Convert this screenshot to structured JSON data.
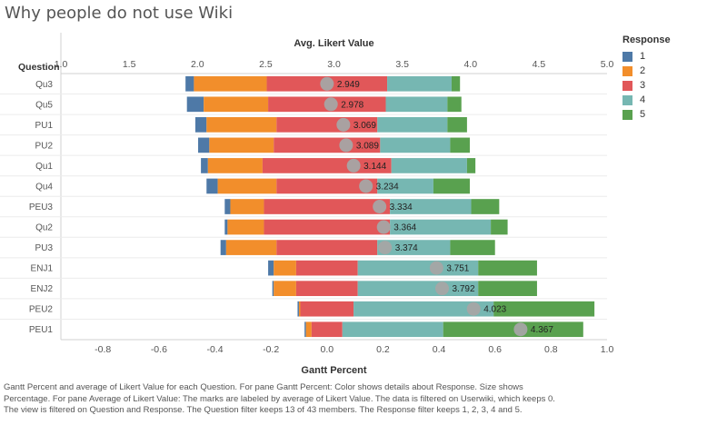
{
  "title": "Why people do not use Wiki",
  "chart_data": {
    "type": "bar",
    "row_header": "Question",
    "top_axis": {
      "label": "Avg. Likert Value",
      "range": [
        1.0,
        5.0
      ],
      "ticks": [
        "1.0",
        "1.5",
        "2.0",
        "2.5",
        "3.0",
        "3.5",
        "4.0",
        "4.5",
        "5.0"
      ]
    },
    "bottom_axis": {
      "label": "Gantt Percent",
      "range": [
        -0.95,
        1.0
      ],
      "ticks": [
        "-0.8",
        "-0.6",
        "-0.4",
        "-0.2",
        "0.0",
        "0.2",
        "0.4",
        "0.6",
        "0.8",
        "1.0"
      ]
    },
    "legend": {
      "title": "Response",
      "position": "right"
    },
    "responses": [
      {
        "name": "1",
        "color": "#4e79a7"
      },
      {
        "name": "2",
        "color": "#f28e2b"
      },
      {
        "name": "3",
        "color": "#e15759"
      },
      {
        "name": "4",
        "color": "#76b7b2"
      },
      {
        "name": "5",
        "color": "#59a14f"
      }
    ],
    "rows": [
      {
        "question": "Qu3",
        "segments": [
          0.03,
          0.26,
          0.43,
          0.23,
          0.03
        ],
        "avg": 2.949,
        "avg_label": "2.949"
      },
      {
        "question": "Qu5",
        "segments": [
          0.06,
          0.23,
          0.42,
          0.22,
          0.05
        ],
        "avg": 2.978,
        "avg_label": "2.978"
      },
      {
        "question": "PU1",
        "segments": [
          0.04,
          0.25,
          0.36,
          0.25,
          0.07
        ],
        "avg": 3.069,
        "avg_label": "3.069"
      },
      {
        "question": "PU2",
        "segments": [
          0.04,
          0.23,
          0.38,
          0.25,
          0.07
        ],
        "avg": 3.089,
        "avg_label": "3.089"
      },
      {
        "question": "Qu1",
        "segments": [
          0.025,
          0.195,
          0.46,
          0.27,
          0.03
        ],
        "avg": 3.144,
        "avg_label": "3.144"
      },
      {
        "question": "Qu4",
        "segments": [
          0.04,
          0.21,
          0.36,
          0.2,
          0.13
        ],
        "avg": 3.234,
        "avg_label": "3.234"
      },
      {
        "question": "PEU3",
        "segments": [
          0.02,
          0.12,
          0.45,
          0.29,
          0.1
        ],
        "avg": 3.334,
        "avg_label": "3.334"
      },
      {
        "question": "Qu2",
        "segments": [
          0.01,
          0.13,
          0.45,
          0.36,
          0.06
        ],
        "avg": 3.364,
        "avg_label": "3.364"
      },
      {
        "question": "PU3",
        "segments": [
          0.02,
          0.18,
          0.36,
          0.26,
          0.16
        ],
        "avg": 3.374,
        "avg_label": "3.374"
      },
      {
        "question": "ENJ1",
        "segments": [
          0.02,
          0.08,
          0.22,
          0.43,
          0.21
        ],
        "avg": 3.751,
        "avg_label": "3.751"
      },
      {
        "question": "ENJ2",
        "segments": [
          0.005,
          0.08,
          0.22,
          0.43,
          0.21
        ],
        "avg": 3.792,
        "avg_label": "3.792"
      },
      {
        "question": "PEU2",
        "segments": [
          0.005,
          0.005,
          0.19,
          0.5,
          0.36
        ],
        "avg": 4.023,
        "avg_label": "4.023"
      },
      {
        "question": "PEU1",
        "segments": [
          0.005,
          0.02,
          0.11,
          0.36,
          0.5
        ],
        "avg": 4.367,
        "avg_label": "4.367"
      }
    ],
    "grid": false
  },
  "caption": [
    "Gantt Percent and average of Likert Value for each Question.  For pane Gantt Percent:  Color shows details about Response.  Size shows",
    "Percentage.  For pane Average of Likert Value:  The marks are labeled by average of Likert Value. The data is filtered on Userwiki, which keeps 0.",
    "The view is filtered on Question and Response. The Question filter keeps 13 of 43 members. The Response filter keeps 1, 2, 3, 4 and 5."
  ]
}
